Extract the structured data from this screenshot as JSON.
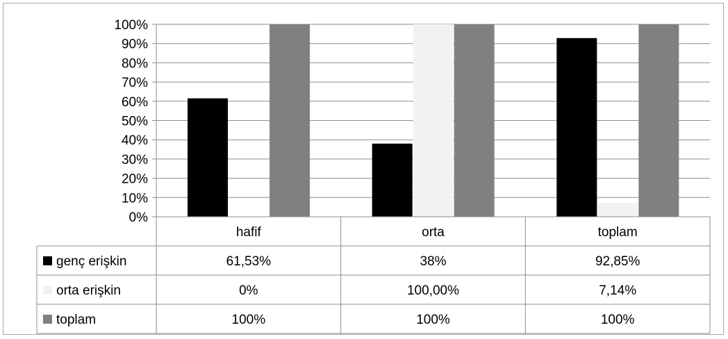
{
  "chart_data": {
    "type": "bar",
    "categories": [
      "hafif",
      "orta",
      "toplam"
    ],
    "series": [
      {
        "name": "genç erişkin",
        "values": [
          61.53,
          38,
          92.85
        ],
        "color": "#000000",
        "labels": [
          "61,53%",
          "38%",
          "92,85%"
        ]
      },
      {
        "name": "orta erişkin",
        "values": [
          0,
          100,
          7.14
        ],
        "color": "#f2f2f2",
        "labels": [
          "0%",
          "100,00%",
          "7,14%"
        ]
      },
      {
        "name": "toplam",
        "values": [
          100,
          100,
          100
        ],
        "color": "#808080",
        "labels": [
          "100%",
          "100%",
          "100%"
        ]
      }
    ],
    "y_ticks": [
      "0%",
      "10%",
      "20%",
      "30%",
      "40%",
      "50%",
      "60%",
      "70%",
      "80%",
      "90%",
      "100%"
    ],
    "ylim": [
      0,
      100
    ],
    "grid": true,
    "legend": "data-table-left",
    "title": "",
    "xlabel": "",
    "ylabel": ""
  }
}
